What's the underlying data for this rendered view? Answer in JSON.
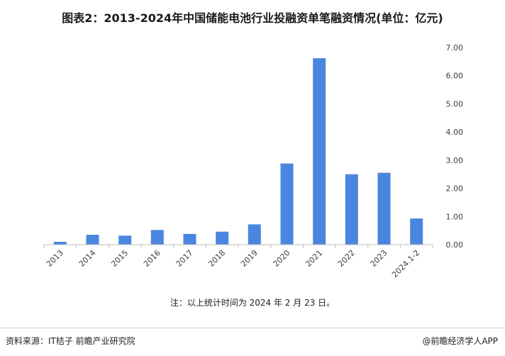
{
  "title": "图表2：2013-2024年中国储能电池行业投融资单笔融资情况(单位：亿元)",
  "note": "注：以上统计时间为 2024 年 2 月 23 日。",
  "source": "资料来源：IT桔子 前瞻产业研究院",
  "brand": "@前瞻经济学人APP",
  "colors": {
    "bar": "#4a86e0",
    "axis": "#bfbfbf",
    "text": "#404040"
  },
  "chart_data": {
    "type": "bar",
    "categories": [
      "2013",
      "2014",
      "2015",
      "2016",
      "2017",
      "2018",
      "2019",
      "2020",
      "2021",
      "2022",
      "2023",
      "2024.1-2"
    ],
    "values": [
      0.1,
      0.35,
      0.32,
      0.52,
      0.38,
      0.46,
      0.72,
      2.88,
      6.62,
      2.5,
      2.55,
      0.93
    ],
    "ylim": [
      0,
      7
    ],
    "yticks": [
      "0.00",
      "1.00",
      "2.00",
      "3.00",
      "4.00",
      "5.00",
      "6.00",
      "7.00"
    ],
    "y_axis_position": "right",
    "grid": false,
    "legend": "none",
    "xlabel": "",
    "ylabel": ""
  }
}
